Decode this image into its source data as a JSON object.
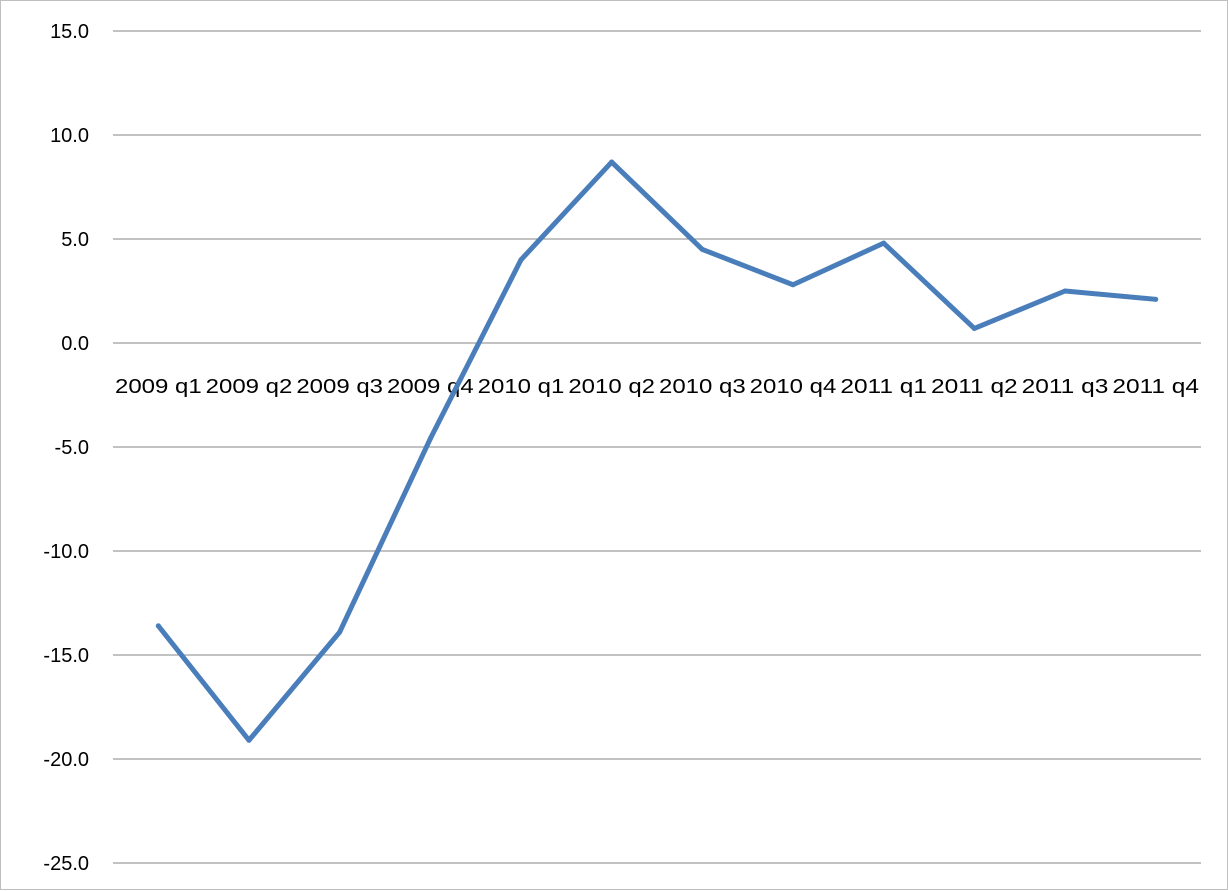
{
  "chart_data": {
    "type": "line",
    "title": "",
    "xlabel": "",
    "ylabel": "",
    "categories": [
      "2009 q1",
      "2009 q2",
      "2009 q3",
      "2009 q4",
      "2010 q1",
      "2010 q2",
      "2010 q3",
      "2010 q4",
      "2011 q1",
      "2011 q2",
      "2011 q3",
      "2011 q4"
    ],
    "series": [
      {
        "values": [
          -13.6,
          -19.1,
          -13.9,
          -4.6,
          4.0,
          8.7,
          4.5,
          2.8,
          4.8,
          0.7,
          2.5,
          2.1
        ],
        "color": "#4a7ebb"
      }
    ],
    "ylim": [
      -25.0,
      15.0
    ],
    "y_ticks": [
      "15.0",
      "10.0",
      "5.0",
      "0.0",
      "-5.0",
      "-10.0",
      "-15.0",
      "-20.0",
      "-25.0"
    ],
    "grid": true,
    "gridline_color": "#868686",
    "legend": "none"
  }
}
